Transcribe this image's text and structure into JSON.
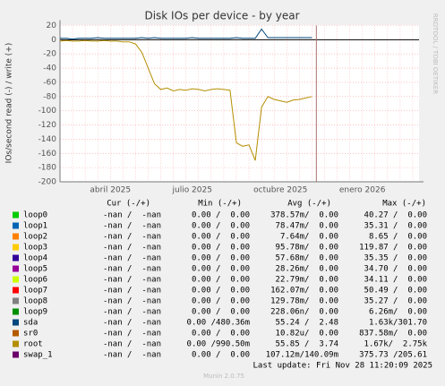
{
  "chart_data": {
    "type": "line",
    "title": "Disk IOs per device - by year",
    "y_label": "IOs/second read (-) / write (+)",
    "side_text": "RRDTOOL / TOBI OETIKER",
    "footer": "Last update: Fri Nov 28 11:20:09 2025",
    "version": "Munin 2.0.75",
    "categories": [
      null,
      null,
      null,
      null,
      null,
      null,
      null,
      null,
      "abril 2025",
      null,
      null,
      null,
      null,
      null,
      null,
      null,
      null,
      null,
      null,
      null,
      null,
      "julio 2025",
      null,
      null,
      null,
      null,
      null,
      null,
      null,
      null,
      null,
      null,
      null,
      null,
      null,
      "octubre 2025",
      null,
      null,
      null,
      null,
      null,
      null,
      null,
      null,
      null,
      null,
      null,
      null,
      "enero 2026",
      null,
      null,
      null,
      null,
      null,
      null,
      null,
      null
    ],
    "ylim": [
      -200,
      20
    ],
    "yticks": [
      20,
      0,
      -20,
      -40,
      -60,
      -80,
      -100,
      -120,
      -140,
      -160,
      -180,
      -200
    ],
    "grid": true,
    "headers": [
      "Cur (-/+)",
      "Min (-/+)",
      "Avg (-/+)",
      "Max (-/+)"
    ],
    "series": [
      {
        "name": "loop0",
        "color": "#00cc00",
        "cur": "-nan /  -nan",
        "min": "0.00 /  0.00",
        "avg": "378.57m/  0.00",
        "max": "40.27 /  0.00"
      },
      {
        "name": "loop1",
        "color": "#0066b3",
        "cur": "-nan /  -nan",
        "min": "0.00 /  0.00",
        "avg": "78.47m/  0.00",
        "max": "35.31 /  0.00"
      },
      {
        "name": "loop2",
        "color": "#ff8000",
        "cur": "-nan /  -nan",
        "min": "0.00 /  0.00",
        "avg": "7.64m/  0.00",
        "max": "8.65 /  0.00"
      },
      {
        "name": "loop3",
        "color": "#ffcc00",
        "cur": "-nan /  -nan",
        "min": "0.00 /  0.00",
        "avg": "95.78m/  0.00",
        "max": "119.87 /  0.00"
      },
      {
        "name": "loop4",
        "color": "#330099",
        "cur": "-nan /  -nan",
        "min": "0.00 /  0.00",
        "avg": "57.68m/  0.00",
        "max": "35.35 /  0.00"
      },
      {
        "name": "loop5",
        "color": "#990099",
        "cur": "-nan /  -nan",
        "min": "0.00 /  0.00",
        "avg": "28.26m/  0.00",
        "max": "34.70 /  0.00"
      },
      {
        "name": "loop6",
        "color": "#ccff00",
        "cur": "-nan /  -nan",
        "min": "0.00 /  0.00",
        "avg": "22.79m/  0.00",
        "max": "34.11 /  0.00"
      },
      {
        "name": "loop7",
        "color": "#ff0000",
        "cur": "-nan /  -nan",
        "min": "0.00 /  0.00",
        "avg": "162.07m/  0.00",
        "max": "50.49 /  0.00"
      },
      {
        "name": "loop8",
        "color": "#808080",
        "cur": "-nan /  -nan",
        "min": "0.00 /  0.00",
        "avg": "129.78m/  0.00",
        "max": "35.27 /  0.00"
      },
      {
        "name": "loop9",
        "color": "#008f00",
        "cur": "-nan /  -nan",
        "min": "0.00 /  0.00",
        "avg": "228.06n/  0.00",
        "max": "6.26m/  0.00"
      },
      {
        "name": "sda",
        "color": "#00487d",
        "cur": "-nan /  -nan",
        "min": "0.00 /480.36m",
        "avg": "55.24 /  2.48",
        "max": "1.63k/301.70",
        "values": [
          2,
          2,
          1,
          2,
          2,
          2,
          3,
          2,
          2,
          2,
          2,
          2,
          2,
          3,
          2,
          3,
          2,
          2,
          2,
          2,
          2,
          3,
          2,
          2,
          2,
          2,
          2,
          2,
          3,
          2,
          2,
          2,
          15,
          3,
          3,
          3,
          3,
          3,
          3,
          3,
          3,
          null,
          null,
          null,
          null,
          null,
          null,
          null,
          null,
          null,
          null,
          null,
          null,
          null,
          null,
          null,
          null
        ]
      },
      {
        "name": "sr0",
        "color": "#b35a00",
        "cur": "-nan /  -nan",
        "min": "0.00 /  0.00",
        "avg": "10.82u/  0.00",
        "max": "837.58m/  0.00"
      },
      {
        "name": "root",
        "color": "#b38f00",
        "cur": "-nan /  -nan",
        "min": "0.00 /990.50m",
        "avg": "55.85 /  3.74",
        "max": "1.67k/  2.75k",
        "values": [
          -2,
          -1,
          -2,
          -2,
          -1,
          -2,
          -2,
          -1,
          -2,
          -2,
          -3,
          -3,
          -6,
          -18,
          -40,
          -62,
          -70,
          -68,
          -72,
          -70,
          -71,
          -69,
          -70,
          -72,
          -70,
          -69,
          -70,
          -71,
          -145,
          -150,
          -148,
          -170,
          -95,
          -80,
          -84,
          -86,
          -88,
          -85,
          -84,
          -82,
          -80,
          null,
          null,
          null,
          null,
          null,
          null,
          null,
          null,
          null,
          null,
          null,
          null,
          null,
          null,
          null,
          null
        ]
      },
      {
        "name": "swap_1",
        "color": "#6b006b",
        "cur": "-nan /  -nan",
        "min": "0.00 /  0.00",
        "avg": "107.12m/140.09m",
        "max": "375.73 /205.61"
      }
    ]
  }
}
